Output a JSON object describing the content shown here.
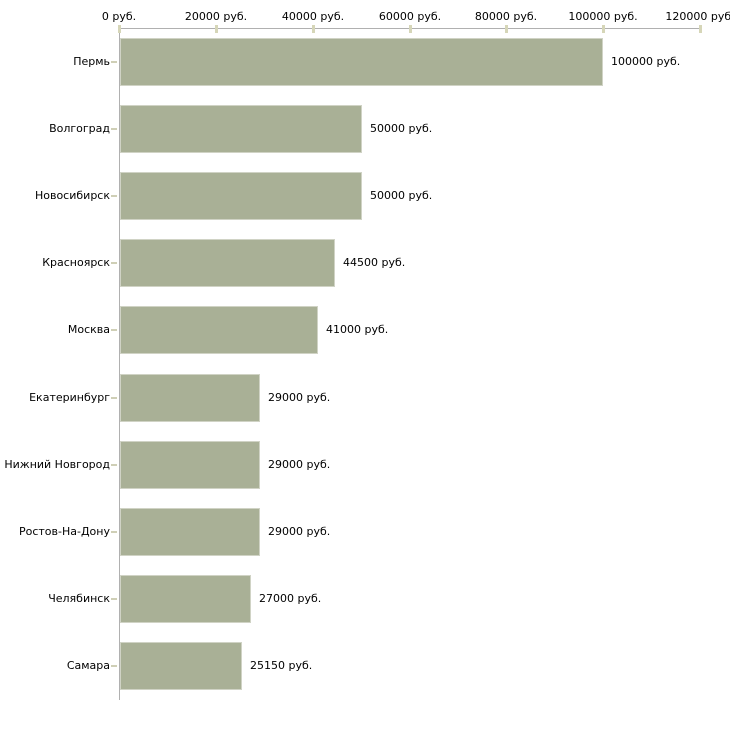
{
  "chart_data": {
    "type": "bar",
    "orientation": "horizontal",
    "title": "",
    "unit_suffix": " руб.",
    "categories": [
      "Пермь",
      "Волгоград",
      "Новосибирск",
      "Красноярск",
      "Москва",
      "Екатеринбург",
      "Нижний Новгород",
      "Ростов-На-Дону",
      "Челябинск",
      "Самара"
    ],
    "values": [
      100000,
      50000,
      50000,
      44500,
      41000,
      29000,
      29000,
      29000,
      27000,
      25150
    ],
    "value_labels": [
      "100000 руб.",
      "50000 руб.",
      "50000 руб.",
      "44500 руб.",
      "41000 руб.",
      "29000 руб.",
      "29000 руб.",
      "29000 руб.",
      "27000 руб.",
      "25150 руб."
    ],
    "x_axis": {
      "position": "top",
      "min": 0,
      "max": 120000,
      "tick_values": [
        0,
        20000,
        40000,
        60000,
        80000,
        100000,
        120000
      ],
      "tick_labels": [
        "0 руб.",
        "20000 руб.",
        "40000 руб.",
        "60000 руб.",
        "80000 руб.",
        "100000 руб.",
        "120000 руб."
      ]
    },
    "legend": false,
    "grid": false,
    "colors": {
      "bar": "#a9b096",
      "axis_line": "#b0b0b0",
      "axis_tick": "#d6d6b8",
      "category_tick": "#cfcfb6",
      "text": "#000000",
      "background": "#ffffff"
    }
  }
}
